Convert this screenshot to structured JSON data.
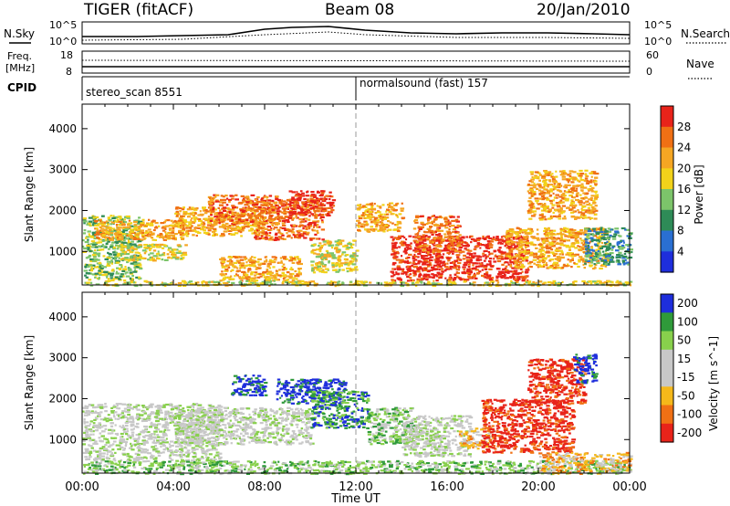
{
  "header": {
    "title": "TIGER (fitACF)",
    "beam": "Beam 08",
    "date": "20/Jan/2010"
  },
  "nsky_panel": {
    "left_label": "N.Sky",
    "right_label": "N.Search",
    "left_ticks": [
      "10^5",
      "10^0"
    ],
    "right_ticks": [
      "10^5",
      "10^0"
    ]
  },
  "freq_panel": {
    "left_label_1": "Freq.",
    "left_label_2": "[MHz]",
    "right_label": "Nave",
    "left_ticks": [
      "18",
      "8"
    ],
    "right_ticks": [
      "60",
      "0"
    ]
  },
  "cpid": {
    "label": "CPID",
    "seg1": "stereo_scan 8551",
    "seg2": "normalsound (fast) 157"
  },
  "colors": {
    "power_scale": [
      "#1e2edc",
      "#2a6fd2",
      "#2e8b57",
      "#7cc46a",
      "#f2d21a",
      "#f5a623",
      "#f07014",
      "#e8231a"
    ],
    "velocity_scale": [
      "#1e2edc",
      "#2f9a3a",
      "#88d04c",
      "#c8c8c8",
      "#c8c8c8",
      "#f5b81a",
      "#f07014",
      "#e8231a"
    ]
  },
  "chart_data": [
    {
      "type": "heatmap",
      "panel": "power",
      "xlabel": "Time UT",
      "ylabel": "Slant Range [km]",
      "x_ticks": [
        "00:00",
        "04:00",
        "08:00",
        "12:00",
        "16:00",
        "20:00",
        "00:00"
      ],
      "y_ticks": [
        1000,
        2000,
        3000,
        4000
      ],
      "ylim": [
        180,
        4600
      ],
      "xlim_hours": [
        0,
        24
      ],
      "colorbar": {
        "label": "Power [dB]",
        "ticks": [
          4,
          8,
          12,
          16,
          20,
          24,
          28
        ],
        "range": [
          0,
          32
        ]
      },
      "regions": [
        {
          "t0": 0.0,
          "t1": 2.5,
          "r0": 300,
          "r1": 1900,
          "level": 3
        },
        {
          "t0": 0.5,
          "t1": 4.5,
          "r0": 1300,
          "r1": 1800,
          "level": 5
        },
        {
          "t0": 1.5,
          "t1": 4.5,
          "r0": 800,
          "r1": 1200,
          "level": 4
        },
        {
          "t0": 4.0,
          "t1": 8.0,
          "r0": 1400,
          "r1": 2100,
          "level": 5
        },
        {
          "t0": 5.5,
          "t1": 8.5,
          "r0": 1700,
          "r1": 2400,
          "level": 6
        },
        {
          "t0": 7.5,
          "t1": 10.5,
          "r0": 1300,
          "r1": 2300,
          "level": 6
        },
        {
          "t0": 9.0,
          "t1": 11.0,
          "r0": 1900,
          "r1": 2500,
          "level": 7
        },
        {
          "t0": 6.0,
          "t1": 9.5,
          "r0": 300,
          "r1": 900,
          "level": 5
        },
        {
          "t0": 10.0,
          "t1": 12.0,
          "r0": 500,
          "r1": 1300,
          "level": 4
        },
        {
          "t0": 12.0,
          "t1": 14.0,
          "r0": 1500,
          "r1": 2200,
          "level": 5
        },
        {
          "t0": 13.5,
          "t1": 19.5,
          "r0": 300,
          "r1": 1400,
          "level": 7
        },
        {
          "t0": 14.5,
          "t1": 16.5,
          "r0": 1000,
          "r1": 1900,
          "level": 6
        },
        {
          "t0": 18.5,
          "t1": 23.0,
          "r0": 600,
          "r1": 1600,
          "level": 5
        },
        {
          "t0": 19.5,
          "t1": 22.5,
          "r0": 1800,
          "r1": 3000,
          "level": 5
        },
        {
          "t0": 22.0,
          "t1": 24.0,
          "r0": 700,
          "r1": 1600,
          "level": 2
        },
        {
          "t0": 0.0,
          "t1": 24.0,
          "r0": 180,
          "r1": 300,
          "level": 4
        }
      ]
    },
    {
      "type": "heatmap",
      "panel": "velocity",
      "xlabel": "Time UT",
      "ylabel": "Slant Range [km]",
      "x_ticks": [
        "00:00",
        "04:00",
        "08:00",
        "12:00",
        "16:00",
        "20:00",
        "00:00"
      ],
      "y_ticks": [
        1000,
        2000,
        3000,
        4000
      ],
      "ylim": [
        180,
        4600
      ],
      "xlim_hours": [
        0,
        24
      ],
      "colorbar": {
        "label": "Velocity [m s^-1]",
        "ticks": [
          200,
          100,
          50,
          15,
          -15,
          -50,
          -100,
          -200
        ],
        "range": [
          -250,
          250
        ]
      },
      "regions": [
        {
          "t0": 0.0,
          "t1": 6.0,
          "r0": 500,
          "r1": 1900,
          "level": 3
        },
        {
          "t0": 4.0,
          "t1": 10.0,
          "r0": 900,
          "r1": 1800,
          "level": 3
        },
        {
          "t0": 8.5,
          "t1": 11.5,
          "r0": 1900,
          "r1": 2500,
          "level": 0
        },
        {
          "t0": 6.5,
          "t1": 8.0,
          "r0": 2100,
          "r1": 2600,
          "level": 0
        },
        {
          "t0": 10.0,
          "t1": 12.5,
          "r0": 1300,
          "r1": 2200,
          "level": 1
        },
        {
          "t0": 12.5,
          "t1": 14.5,
          "r0": 900,
          "r1": 1800,
          "level": 2
        },
        {
          "t0": 14.0,
          "t1": 17.0,
          "r0": 600,
          "r1": 1600,
          "level": 3
        },
        {
          "t0": 16.5,
          "t1": 18.0,
          "r0": 800,
          "r1": 1300,
          "level": 5
        },
        {
          "t0": 17.5,
          "t1": 21.5,
          "r0": 700,
          "r1": 2000,
          "level": 7
        },
        {
          "t0": 19.5,
          "t1": 22.0,
          "r0": 1900,
          "r1": 3000,
          "level": 7
        },
        {
          "t0": 21.5,
          "t1": 22.5,
          "r0": 2400,
          "r1": 3100,
          "level": 0
        },
        {
          "t0": 0.0,
          "t1": 24.0,
          "r0": 180,
          "r1": 500,
          "level": 2
        },
        {
          "t0": 20.0,
          "t1": 24.0,
          "r0": 180,
          "r1": 700,
          "level": 5
        }
      ]
    }
  ]
}
